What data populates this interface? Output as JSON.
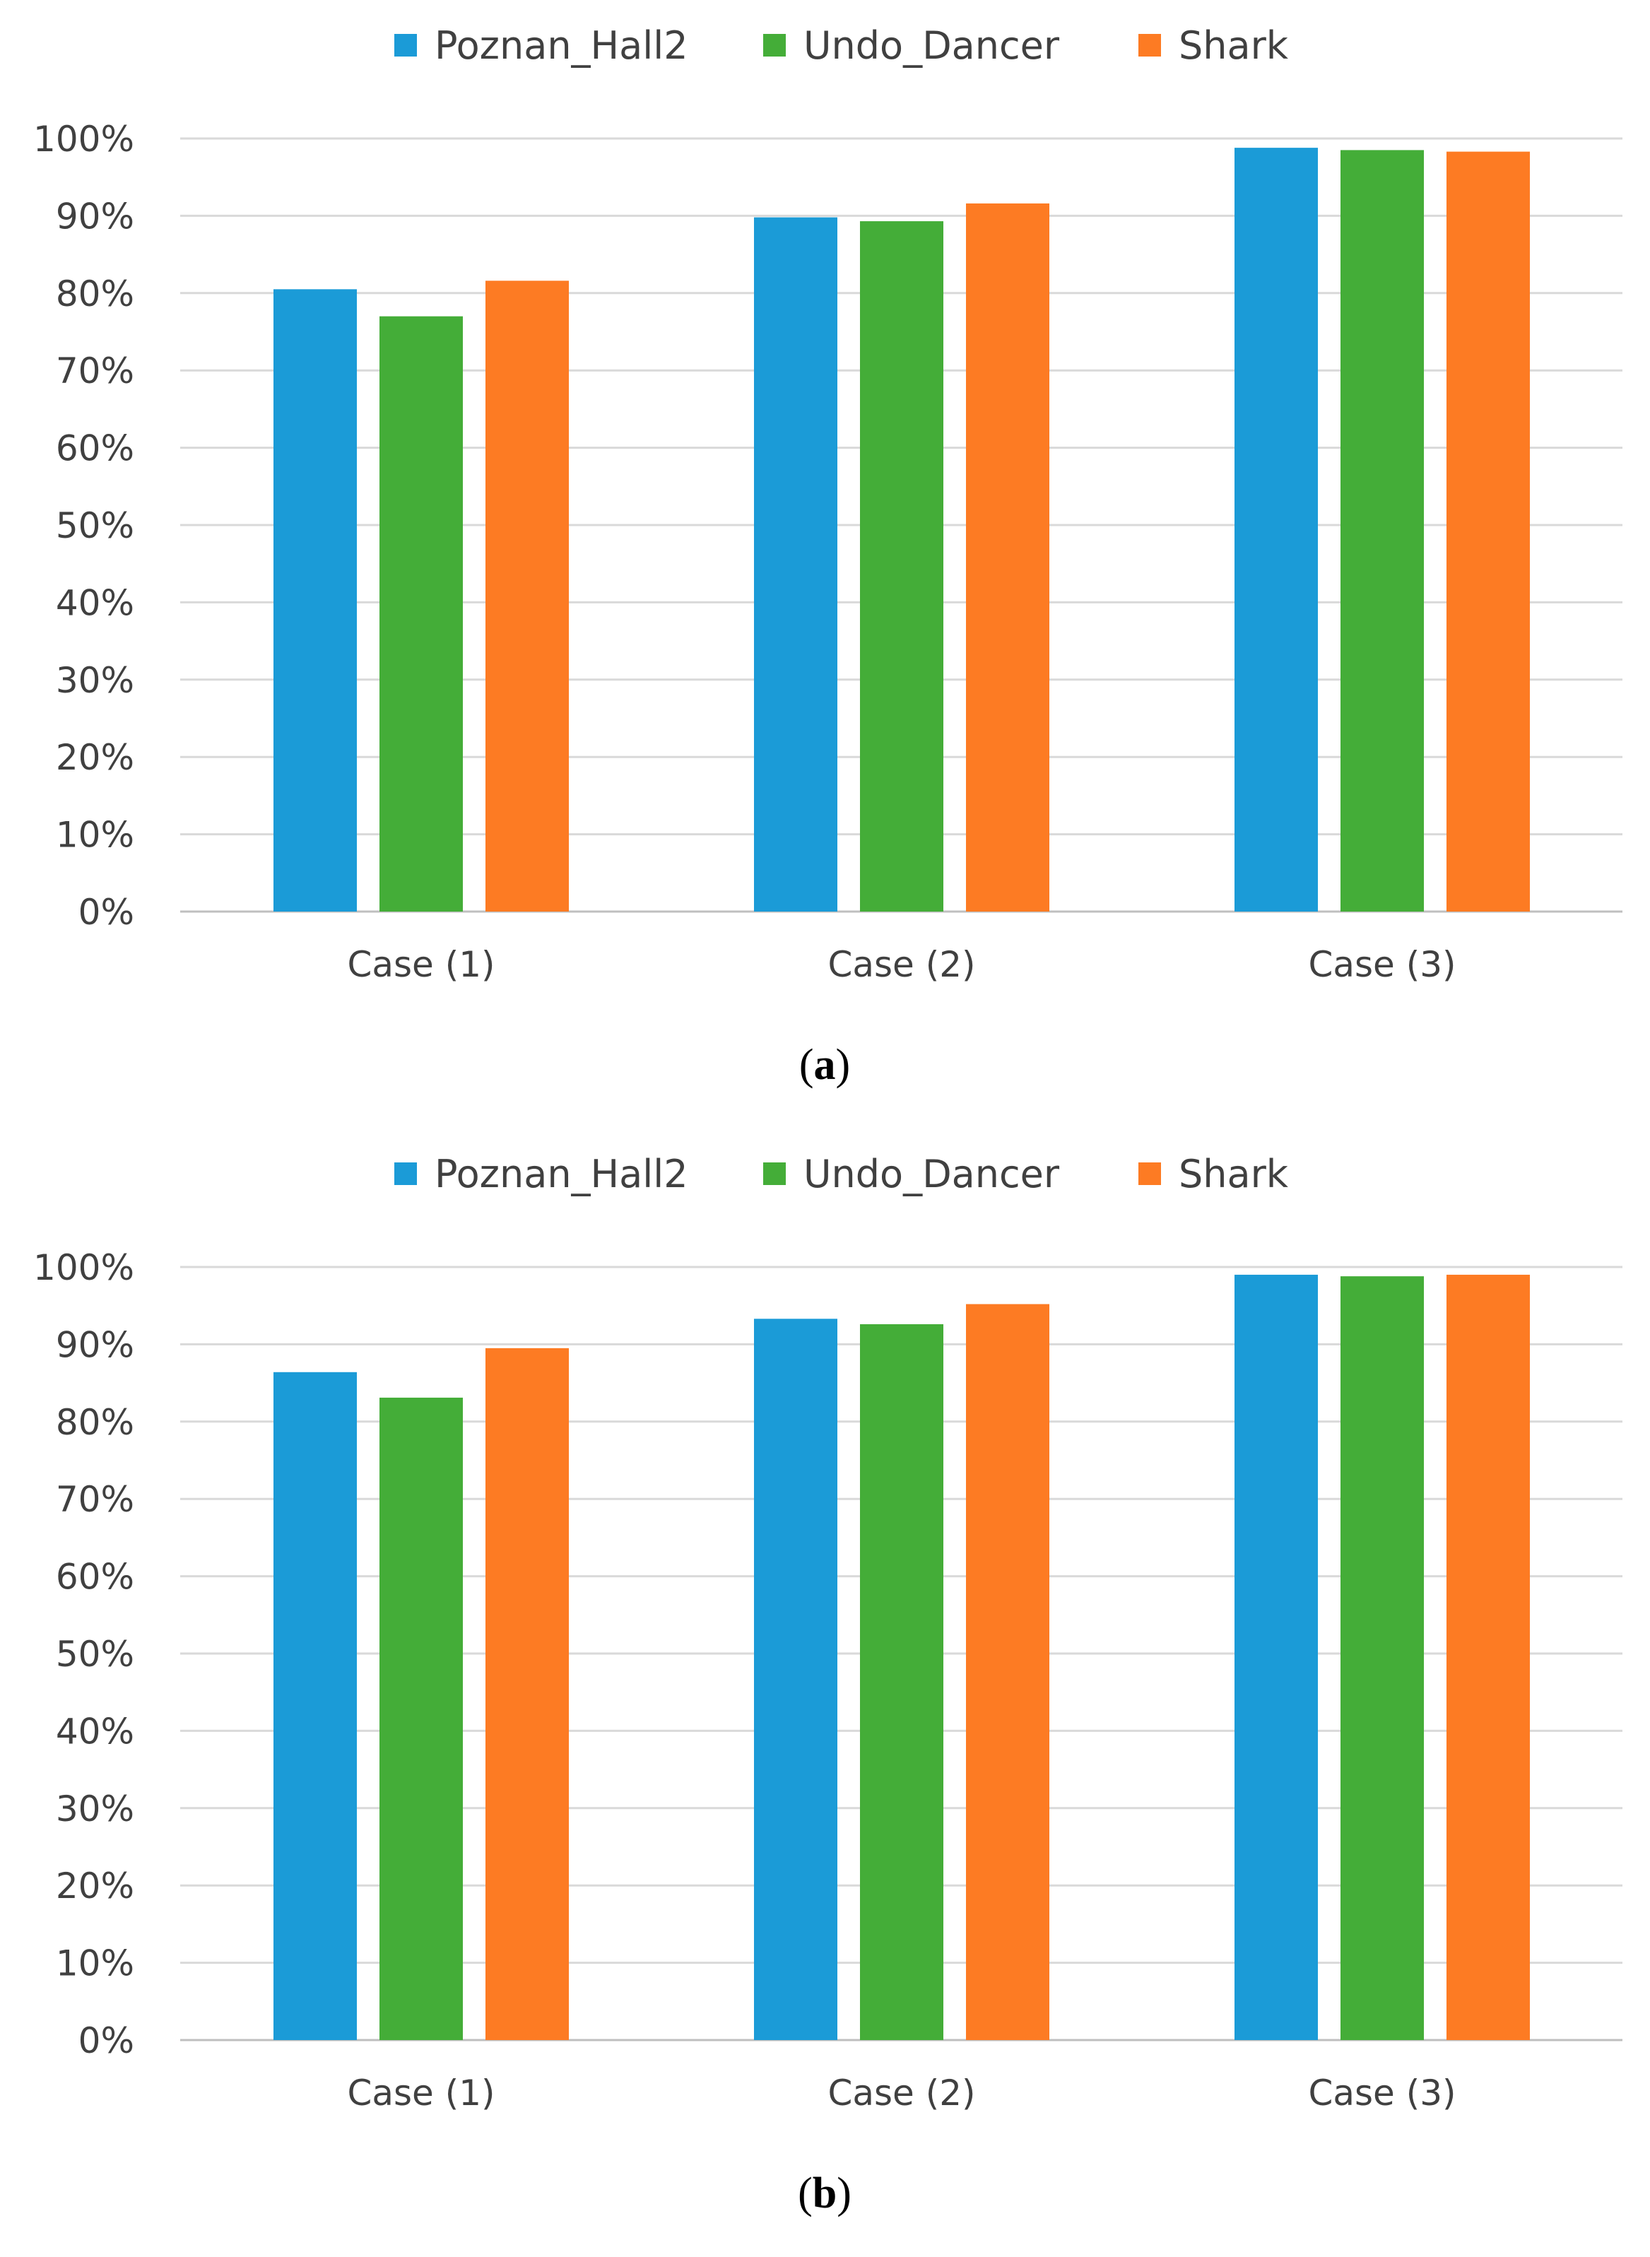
{
  "colors": {
    "Poznan_Hall2": "#1b9bd7",
    "Undo_Dancer": "#44ad38",
    "Shark": "#fd7b23",
    "grid": "#d9d9d9",
    "axis": "#bfbfbf"
  },
  "chart_data": [
    {
      "id": "a",
      "type": "bar",
      "caption_letter": "a",
      "categories": [
        "Case (1)",
        "Case (2)",
        "Case (3)"
      ],
      "series": [
        {
          "name": "Poznan_Hall2",
          "values": [
            80.5,
            89.8,
            98.8
          ]
        },
        {
          "name": "Undo_Dancer",
          "values": [
            77.0,
            89.3,
            98.5
          ]
        },
        {
          "name": "Shark",
          "values": [
            81.6,
            91.6,
            98.3
          ]
        }
      ],
      "yticks": [
        "0%",
        "10%",
        "20%",
        "30%",
        "40%",
        "50%",
        "60%",
        "70%",
        "80%",
        "90%",
        "100%"
      ],
      "ylim": [
        0,
        100
      ],
      "legend": "top-center",
      "grid": true
    },
    {
      "id": "b",
      "type": "bar",
      "caption_letter": "b",
      "categories": [
        "Case (1)",
        "Case (2)",
        "Case (3)"
      ],
      "series": [
        {
          "name": "Poznan_Hall2",
          "values": [
            86.4,
            93.3,
            99.0
          ]
        },
        {
          "name": "Undo_Dancer",
          "values": [
            83.1,
            92.6,
            98.8
          ]
        },
        {
          "name": "Shark",
          "values": [
            89.5,
            95.2,
            99.0
          ]
        }
      ],
      "yticks": [
        "0%",
        "10%",
        "20%",
        "30%",
        "40%",
        "50%",
        "60%",
        "70%",
        "80%",
        "90%",
        "100%"
      ],
      "ylim": [
        0,
        100
      ],
      "legend": "top-center",
      "grid": true
    }
  ]
}
